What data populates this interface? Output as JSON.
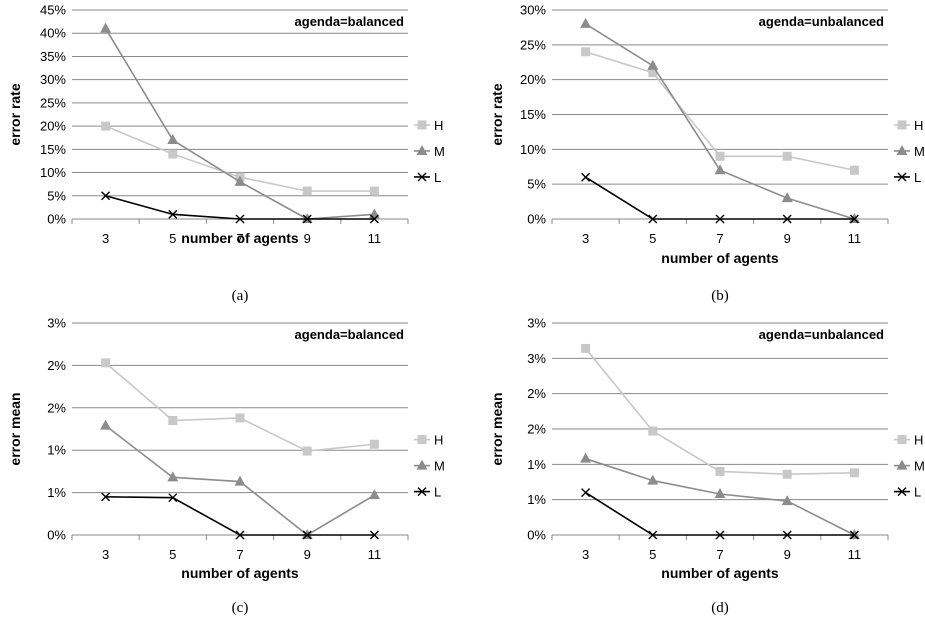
{
  "chart_data": [
    {
      "type": "line",
      "caption": "(a)",
      "annotation": "agenda=balanced",
      "xlabel": "number of agents",
      "ylabel": "error rate",
      "categories": [
        "3",
        "5",
        "7",
        "9",
        "11"
      ],
      "ylim": [
        0,
        45
      ],
      "yticks": [
        "0%",
        "5%",
        "10%",
        "15%",
        "20%",
        "25%",
        "30%",
        "35%",
        "40%",
        "45%"
      ],
      "grid": true,
      "legend_position": "right",
      "series": [
        {
          "name": "H",
          "values": [
            20,
            14,
            9,
            6,
            6
          ],
          "color": "#c8c8c8",
          "marker": "square"
        },
        {
          "name": "M",
          "values": [
            41,
            17,
            8,
            0,
            1
          ],
          "color": "#8c8c8c",
          "marker": "triangle"
        },
        {
          "name": "L",
          "values": [
            5,
            1,
            0,
            0,
            0
          ],
          "color": "#000000",
          "marker": "x"
        }
      ]
    },
    {
      "type": "line",
      "caption": "(b)",
      "annotation": "agenda=unbalanced",
      "xlabel": "number of agents",
      "ylabel": "error rate",
      "categories": [
        "3",
        "5",
        "7",
        "9",
        "11"
      ],
      "ylim": [
        0,
        30
      ],
      "yticks": [
        "0%",
        "5%",
        "10%",
        "15%",
        "20%",
        "25%",
        "30%"
      ],
      "grid": true,
      "legend_position": "right",
      "series": [
        {
          "name": "H",
          "values": [
            24,
            21,
            9,
            9,
            7
          ],
          "color": "#c8c8c8",
          "marker": "square"
        },
        {
          "name": "M",
          "values": [
            28,
            22,
            7,
            3,
            0
          ],
          "color": "#8c8c8c",
          "marker": "triangle"
        },
        {
          "name": "L",
          "values": [
            6,
            0,
            0,
            0,
            0
          ],
          "color": "#000000",
          "marker": "x"
        }
      ]
    },
    {
      "type": "line",
      "caption": "(c)",
      "annotation": "agenda=balanced",
      "xlabel": "number of agents",
      "ylabel": "error mean",
      "categories": [
        "3",
        "5",
        "7",
        "9",
        "11"
      ],
      "ylim": [
        0,
        2.5
      ],
      "yticks": [
        "0%",
        "1%",
        "1%",
        "2%",
        "2%",
        "3%"
      ],
      "grid": true,
      "legend_position": "right",
      "series": [
        {
          "name": "H",
          "values": [
            2.03,
            1.35,
            1.38,
            0.99,
            1.07
          ],
          "color": "#c8c8c8",
          "marker": "square"
        },
        {
          "name": "M",
          "values": [
            1.29,
            0.68,
            0.63,
            0.0,
            0.47
          ],
          "color": "#8c8c8c",
          "marker": "triangle"
        },
        {
          "name": "L",
          "values": [
            0.45,
            0.44,
            0.0,
            0.0,
            0.0
          ],
          "color": "#000000",
          "marker": "x"
        }
      ]
    },
    {
      "type": "line",
      "caption": "(d)",
      "annotation": "agenda=unbalanced",
      "xlabel": "number of agents",
      "ylabel": "error mean",
      "categories": [
        "3",
        "5",
        "7",
        "9",
        "11"
      ],
      "ylim": [
        0,
        3.0
      ],
      "yticks": [
        "0%",
        "1%",
        "1%",
        "2%",
        "2%",
        "3%",
        "3%"
      ],
      "grid": true,
      "legend_position": "right",
      "series": [
        {
          "name": "H",
          "values": [
            2.64,
            1.47,
            0.9,
            0.86,
            0.88
          ],
          "color": "#c8c8c8",
          "marker": "square"
        },
        {
          "name": "M",
          "values": [
            1.08,
            0.77,
            0.58,
            0.48,
            0.0
          ],
          "color": "#8c8c8c",
          "marker": "triangle"
        },
        {
          "name": "L",
          "values": [
            0.6,
            0.0,
            0.0,
            0.0,
            0.0
          ],
          "color": "#000000",
          "marker": "x"
        }
      ]
    }
  ]
}
